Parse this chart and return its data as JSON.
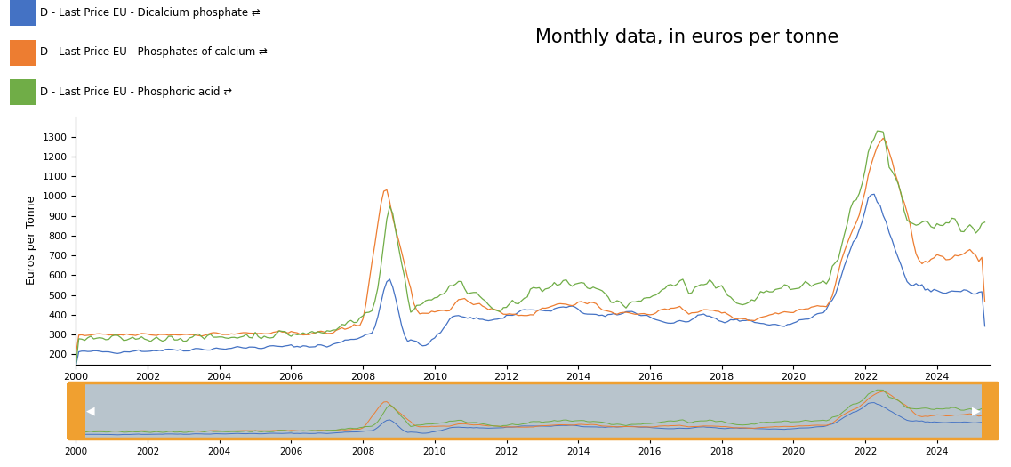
{
  "title": "Monthly data, in euros per tonne",
  "ylabel": "Euros per Tonne",
  "colors": {
    "dicalcium": "#4472C4",
    "phosphates_calcium": "#ED7D31",
    "phosphoric_acid": "#70AD47"
  },
  "legend_labels": [
    "D - Last Price EU - Dicalcium phosphate ⇄",
    "D - Last Price EU - Phosphates of calcium ⇄",
    "D - Last Price EU - Phosphoric acid ⇄"
  ],
  "ylim_main": [
    150,
    1400
  ],
  "yticks_main": [
    200,
    300,
    400,
    500,
    600,
    700,
    800,
    900,
    1000,
    1100,
    1200,
    1300
  ],
  "xticks": [
    2000,
    2002,
    2004,
    2006,
    2008,
    2010,
    2012,
    2014,
    2016,
    2018,
    2020,
    2022,
    2024
  ],
  "nav_bg_color": "#B8C4CC",
  "nav_border_color": "#F0A030",
  "arrow_color": "white",
  "bg_color": "white"
}
